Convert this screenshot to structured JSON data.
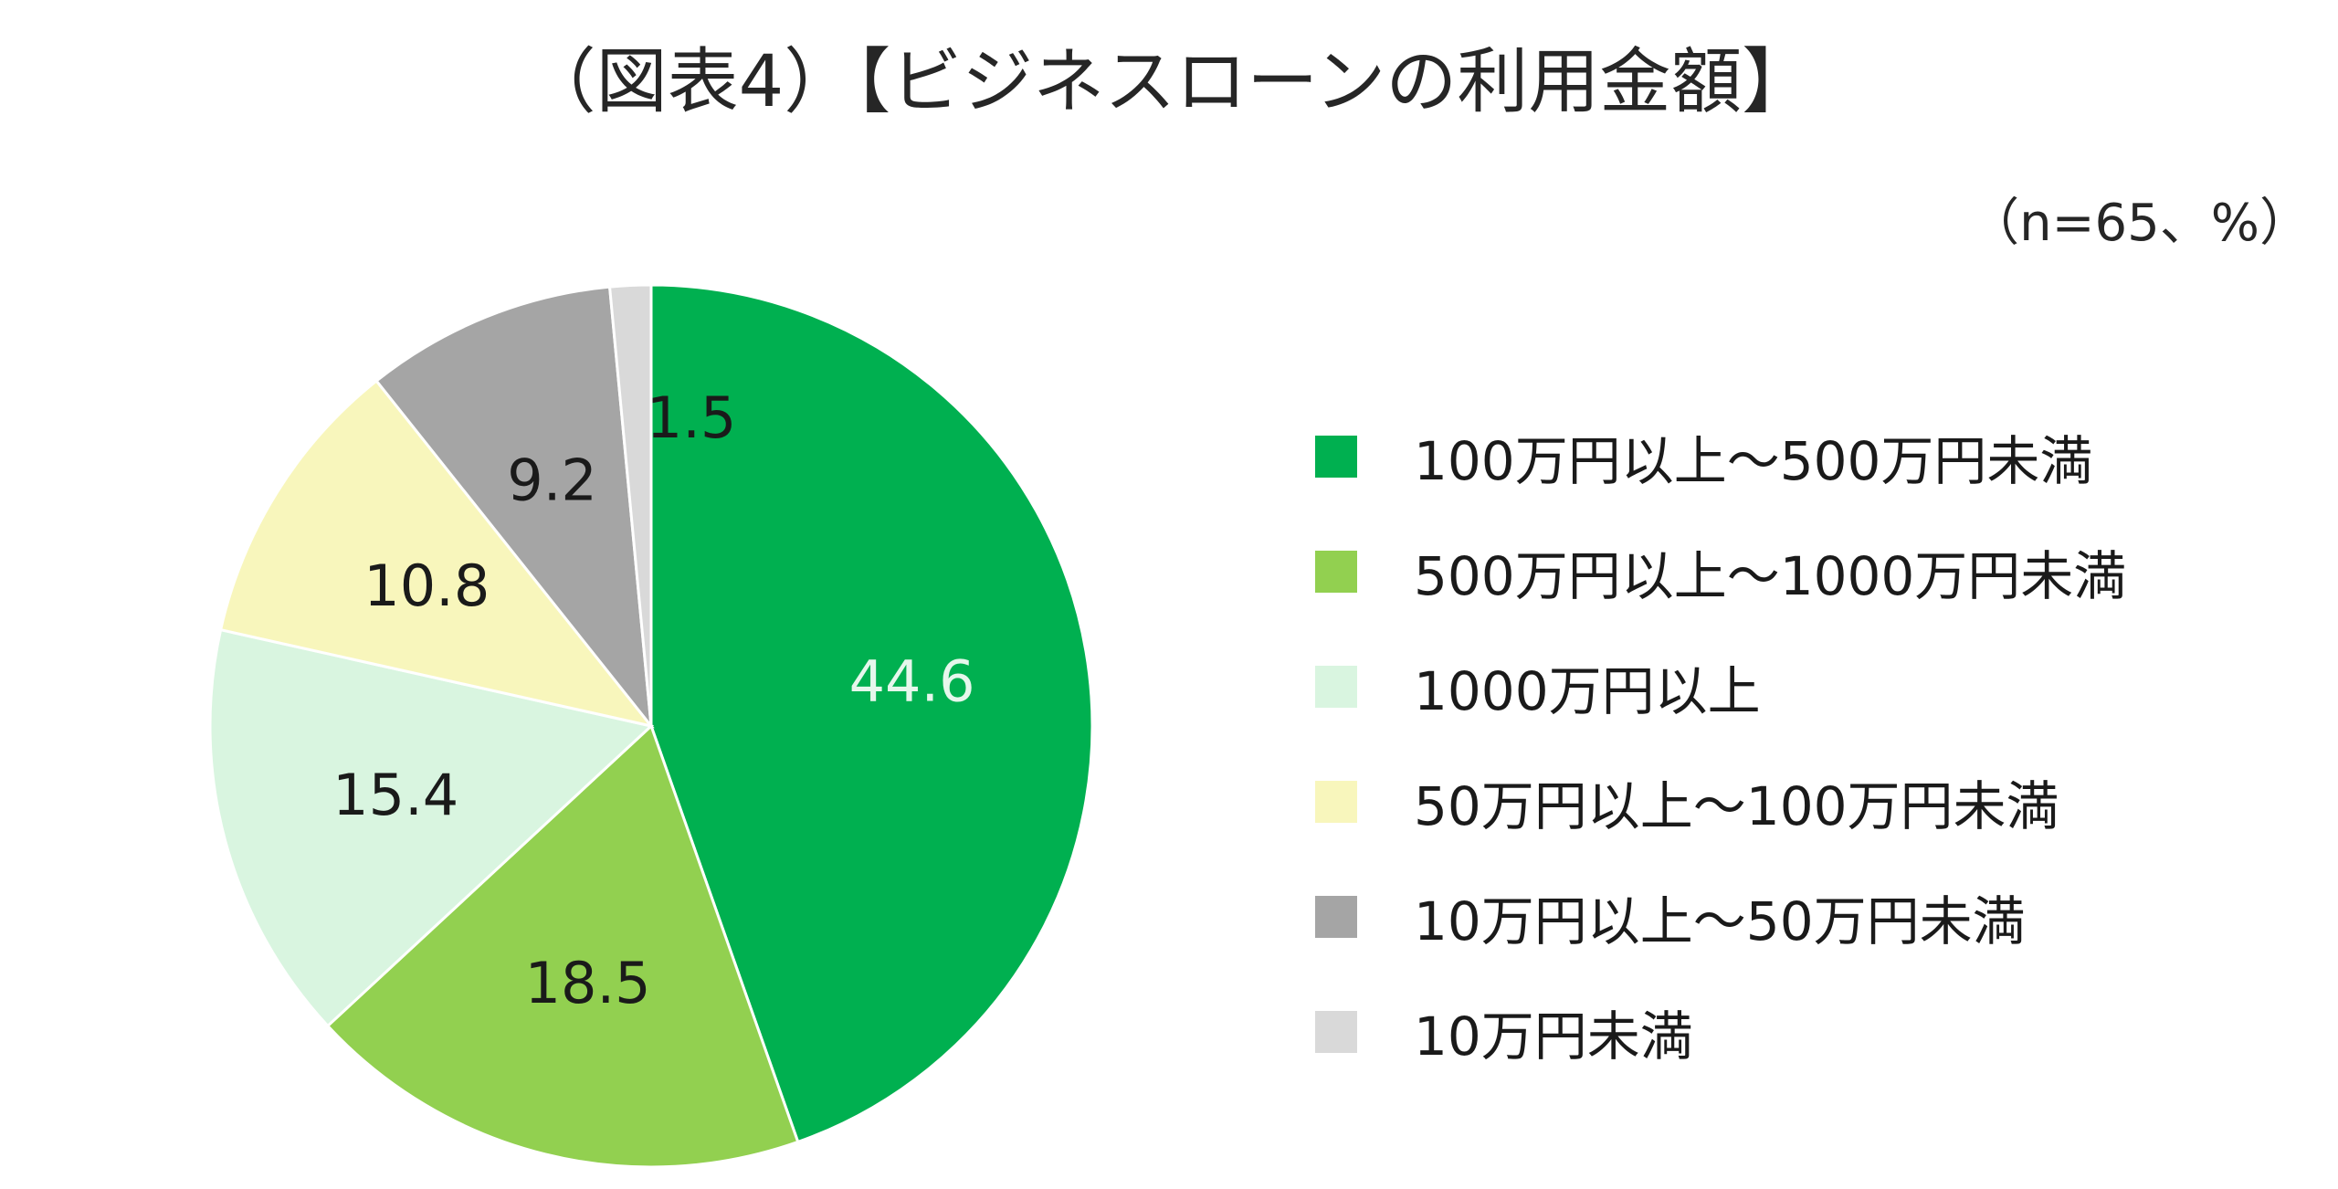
{
  "chart_data": {
    "type": "pie",
    "title": "（図表4）【ビジネスローンの利用金額】",
    "note": "（n=65、%）",
    "legend_placement": "right",
    "slices": [
      {
        "label": "100万円以上～500万円未満",
        "value": 44.6,
        "color": "#00b050",
        "text_color": "#e6f7ec"
      },
      {
        "label": "500万円以上～1000万円未満",
        "value": 18.5,
        "color": "#92d050",
        "text_color": "#1a1a1a"
      },
      {
        "label": "1000万円以上",
        "value": 15.4,
        "color": "#d9f5e0",
        "text_color": "#1a1a1a"
      },
      {
        "label": "50万円以上～100万円未満",
        "value": 10.8,
        "color": "#f8f6bc",
        "text_color": "#1a1a1a"
      },
      {
        "label": "10万円以上～50万円未満",
        "value": 9.2,
        "color": "#a5a5a5",
        "text_color": "#1a1a1a"
      },
      {
        "label": "10万円未満",
        "value": 1.5,
        "color": "#d9d9d9",
        "text_color": "#1a1a1a"
      }
    ]
  }
}
